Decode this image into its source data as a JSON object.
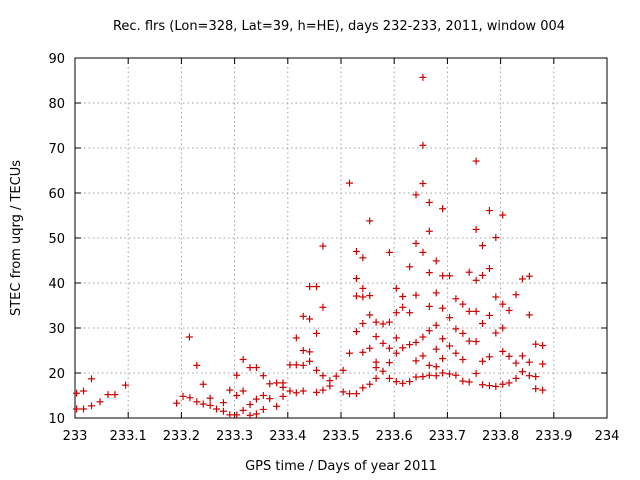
{
  "chart_data": {
    "type": "scatter",
    "title": "Rec. flrs (Lon=328, Lat=39, h=HE), days 232-233, 2011, window 004",
    "xlabel": "GPS time / Days of year 2011",
    "ylabel": "STEC from uqrg / TECUs",
    "xlim": [
      233,
      234
    ],
    "ylim": [
      10,
      90
    ],
    "x_ticks": [
      "233",
      "233.1",
      "233.2",
      "233.3",
      "233.4",
      "233.5",
      "233.6",
      "233.7",
      "233.8",
      "233.9",
      "234"
    ],
    "y_ticks": [
      "10",
      "20",
      "30",
      "40",
      "50",
      "60",
      "70",
      "80",
      "90"
    ],
    "x_tick_values": [
      233.0,
      233.1,
      233.2,
      233.3,
      233.4,
      233.5,
      233.6,
      233.7,
      233.8,
      233.9,
      234.0
    ],
    "y_tick_values": [
      10,
      20,
      30,
      40,
      50,
      60,
      70,
      80,
      90
    ],
    "grid": true,
    "marker": "+",
    "series": [
      {
        "color": "#cc0000",
        "points": [
          [
            233.003,
            15.5
          ],
          [
            233.003,
            12.0
          ],
          [
            233.016,
            16.0
          ],
          [
            233.016,
            12.0
          ],
          [
            233.031,
            18.7
          ],
          [
            233.031,
            12.7
          ],
          [
            233.047,
            13.6
          ],
          [
            233.062,
            15.2
          ],
          [
            233.075,
            15.2
          ],
          [
            233.095,
            17.3
          ],
          [
            233.191,
            13.3
          ],
          [
            233.203,
            14.8
          ],
          [
            233.215,
            28.0
          ],
          [
            233.216,
            14.5
          ],
          [
            233.229,
            21.7
          ],
          [
            233.229,
            13.6
          ],
          [
            233.241,
            17.5
          ],
          [
            233.241,
            13.1
          ],
          [
            233.254,
            14.4
          ],
          [
            233.254,
            12.8
          ],
          [
            233.266,
            12.0
          ],
          [
            233.279,
            13.4
          ],
          [
            233.279,
            11.5
          ],
          [
            233.291,
            16.2
          ],
          [
            233.291,
            10.7
          ],
          [
            233.304,
            19.5
          ],
          [
            233.304,
            10.7
          ],
          [
            233.304,
            15.0
          ],
          [
            233.316,
            23.0
          ],
          [
            233.316,
            11.7
          ],
          [
            233.316,
            16.0
          ],
          [
            233.329,
            21.2
          ],
          [
            233.329,
            10.6
          ],
          [
            233.329,
            13.0
          ],
          [
            233.341,
            21.2
          ],
          [
            233.341,
            10.9
          ],
          [
            233.341,
            14.2
          ],
          [
            233.354,
            19.4
          ],
          [
            233.354,
            11.9
          ],
          [
            233.354,
            15.0
          ],
          [
            233.366,
            17.6
          ],
          [
            233.366,
            14.3
          ],
          [
            233.379,
            17.8
          ],
          [
            233.379,
            12.6
          ],
          [
            233.391,
            17.8
          ],
          [
            233.391,
            14.8
          ],
          [
            233.391,
            16.8
          ],
          [
            233.404,
            21.8
          ],
          [
            233.404,
            16.0
          ],
          [
            233.416,
            27.8
          ],
          [
            233.416,
            21.8
          ],
          [
            233.416,
            15.6
          ],
          [
            233.429,
            32.6
          ],
          [
            233.429,
            25.0
          ],
          [
            233.429,
            21.7
          ],
          [
            233.429,
            16.0
          ],
          [
            233.441,
            39.2
          ],
          [
            233.441,
            32.0
          ],
          [
            233.441,
            24.7
          ],
          [
            233.441,
            22.6
          ],
          [
            233.454,
            39.2
          ],
          [
            233.454,
            28.8
          ],
          [
            233.454,
            20.6
          ],
          [
            233.454,
            15.7
          ],
          [
            233.466,
            48.2
          ],
          [
            233.466,
            34.6
          ],
          [
            233.466,
            19.4
          ],
          [
            233.466,
            16.2
          ],
          [
            233.479,
            18.3
          ],
          [
            233.479,
            17.1
          ],
          [
            233.491,
            19.3
          ],
          [
            233.504,
            20.6
          ],
          [
            233.504,
            15.8
          ],
          [
            233.516,
            62.2
          ],
          [
            233.516,
            24.4
          ],
          [
            233.516,
            15.4
          ],
          [
            233.529,
            47.0
          ],
          [
            233.529,
            41.0
          ],
          [
            233.529,
            37.1
          ],
          [
            233.529,
            29.2
          ],
          [
            233.529,
            15.4
          ],
          [
            233.541,
            45.6
          ],
          [
            233.541,
            38.8
          ],
          [
            233.541,
            36.9
          ],
          [
            233.541,
            31.0
          ],
          [
            233.541,
            24.6
          ],
          [
            233.541,
            16.7
          ],
          [
            233.554,
            53.8
          ],
          [
            233.554,
            37.2
          ],
          [
            233.554,
            32.9
          ],
          [
            233.554,
            25.5
          ],
          [
            233.554,
            17.5
          ],
          [
            233.566,
            31.3
          ],
          [
            233.566,
            28.1
          ],
          [
            233.566,
            22.4
          ],
          [
            233.566,
            21.2
          ],
          [
            233.566,
            18.8
          ],
          [
            233.579,
            30.9
          ],
          [
            233.579,
            26.6
          ],
          [
            233.579,
            20.4
          ],
          [
            233.591,
            46.8
          ],
          [
            233.591,
            31.3
          ],
          [
            233.591,
            25.5
          ],
          [
            233.591,
            22.3
          ],
          [
            233.591,
            18.8
          ],
          [
            233.604,
            38.8
          ],
          [
            233.604,
            33.4
          ],
          [
            233.604,
            27.8
          ],
          [
            233.604,
            24.4
          ],
          [
            233.604,
            18.1
          ],
          [
            233.616,
            37.0
          ],
          [
            233.616,
            34.6
          ],
          [
            233.616,
            25.6
          ],
          [
            233.616,
            17.7
          ],
          [
            233.629,
            43.6
          ],
          [
            233.629,
            33.4
          ],
          [
            233.629,
            26.3
          ],
          [
            233.629,
            18.1
          ],
          [
            233.641,
            59.6
          ],
          [
            233.641,
            48.8
          ],
          [
            233.641,
            37.3
          ],
          [
            233.641,
            26.8
          ],
          [
            233.641,
            22.7
          ],
          [
            233.641,
            19.1
          ],
          [
            233.654,
            85.7
          ],
          [
            233.654,
            70.6
          ],
          [
            233.654,
            62.1
          ],
          [
            233.654,
            46.8
          ],
          [
            233.654,
            28.0
          ],
          [
            233.654,
            23.8
          ],
          [
            233.654,
            19.2
          ],
          [
            233.666,
            57.9
          ],
          [
            233.666,
            51.5
          ],
          [
            233.666,
            42.3
          ],
          [
            233.666,
            34.8
          ],
          [
            233.666,
            29.4
          ],
          [
            233.666,
            21.7
          ],
          [
            233.666,
            19.5
          ],
          [
            233.679,
            44.9
          ],
          [
            233.679,
            37.8
          ],
          [
            233.679,
            30.6
          ],
          [
            233.679,
            25.3
          ],
          [
            233.679,
            21.4
          ],
          [
            233.679,
            19.4
          ],
          [
            233.691,
            56.5
          ],
          [
            233.691,
            41.6
          ],
          [
            233.691,
            34.4
          ],
          [
            233.691,
            27.6
          ],
          [
            233.691,
            23.2
          ],
          [
            233.691,
            20.0
          ],
          [
            233.704,
            41.6
          ],
          [
            233.704,
            32.3
          ],
          [
            233.704,
            26.0
          ],
          [
            233.704,
            19.8
          ],
          [
            233.716,
            36.5
          ],
          [
            233.716,
            29.8
          ],
          [
            233.716,
            24.4
          ],
          [
            233.716,
            19.5
          ],
          [
            233.729,
            35.3
          ],
          [
            233.729,
            28.8
          ],
          [
            233.729,
            23.0
          ],
          [
            233.729,
            18.2
          ],
          [
            233.741,
            42.4
          ],
          [
            233.741,
            33.7
          ],
          [
            233.741,
            27.1
          ],
          [
            233.741,
            18.0
          ],
          [
            233.754,
            67.1
          ],
          [
            233.754,
            51.9
          ],
          [
            233.754,
            40.6
          ],
          [
            233.754,
            33.7
          ],
          [
            233.754,
            27.0
          ],
          [
            233.754,
            19.9
          ],
          [
            233.766,
            48.3
          ],
          [
            233.766,
            41.7
          ],
          [
            233.766,
            31.0
          ],
          [
            233.766,
            22.6
          ],
          [
            233.766,
            17.4
          ],
          [
            233.779,
            56.1
          ],
          [
            233.779,
            43.2
          ],
          [
            233.779,
            32.8
          ],
          [
            233.779,
            23.6
          ],
          [
            233.779,
            17.2
          ],
          [
            233.791,
            50.1
          ],
          [
            233.791,
            36.9
          ],
          [
            233.791,
            28.9
          ],
          [
            233.791,
            17.0
          ],
          [
            233.804,
            55.1
          ],
          [
            233.804,
            35.3
          ],
          [
            233.804,
            30.0
          ],
          [
            233.804,
            24.8
          ],
          [
            233.804,
            17.5
          ],
          [
            233.816,
            33.9
          ],
          [
            233.816,
            23.7
          ],
          [
            233.816,
            17.8
          ],
          [
            233.829,
            37.4
          ],
          [
            233.829,
            22.2
          ],
          [
            233.829,
            18.8
          ],
          [
            233.841,
            40.9
          ],
          [
            233.841,
            23.8
          ],
          [
            233.841,
            20.3
          ],
          [
            233.854,
            41.5
          ],
          [
            233.854,
            32.9
          ],
          [
            233.854,
            22.4
          ],
          [
            233.854,
            19.4
          ],
          [
            233.866,
            26.4
          ],
          [
            233.866,
            19.2
          ],
          [
            233.866,
            16.5
          ],
          [
            233.879,
            26.1
          ],
          [
            233.879,
            22.0
          ],
          [
            233.879,
            16.2
          ]
        ]
      }
    ]
  }
}
